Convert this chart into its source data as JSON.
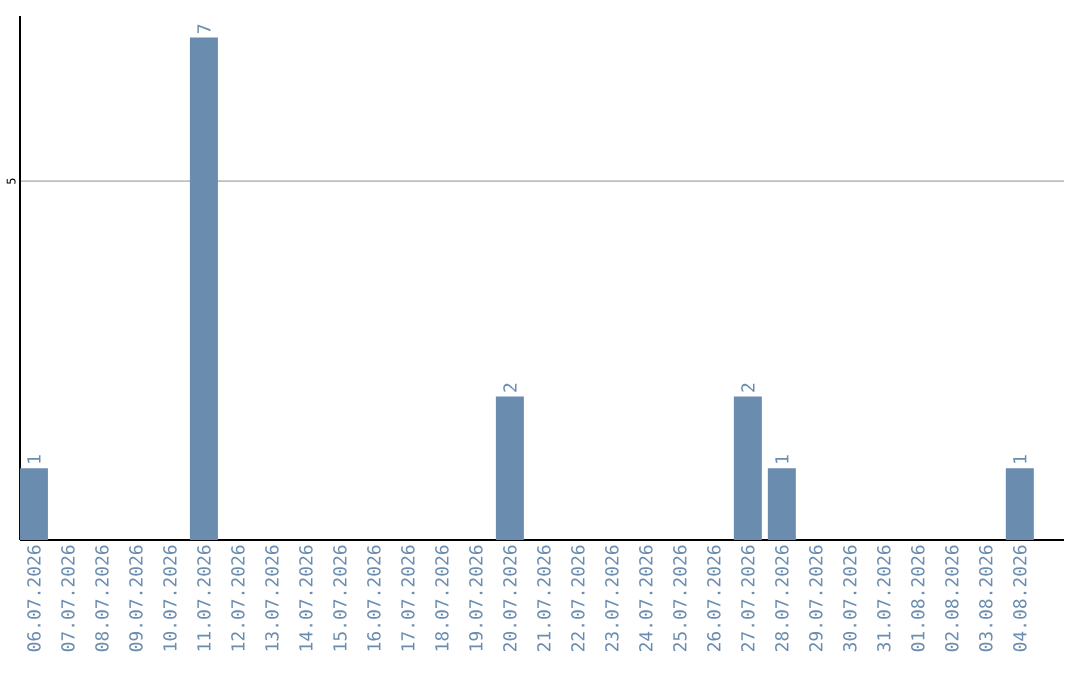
{
  "chart_data": {
    "type": "bar",
    "categories": [
      "06.07.2026",
      "07.07.2026",
      "08.07.2026",
      "09.07.2026",
      "10.07.2026",
      "11.07.2026",
      "12.07.2026",
      "13.07.2026",
      "14.07.2026",
      "15.07.2026",
      "16.07.2026",
      "17.07.2026",
      "18.07.2026",
      "19.07.2026",
      "20.07.2026",
      "21.07.2026",
      "22.07.2026",
      "23.07.2026",
      "24.07.2026",
      "25.07.2026",
      "26.07.2026",
      "27.07.2026",
      "28.07.2026",
      "29.07.2026",
      "30.07.2026",
      "31.07.2026",
      "01.08.2026",
      "02.08.2026",
      "03.08.2026",
      "04.08.2026"
    ],
    "values": [
      1,
      0,
      0,
      0,
      0,
      7,
      0,
      0,
      0,
      0,
      0,
      0,
      0,
      0,
      2,
      0,
      0,
      0,
      0,
      0,
      0,
      2,
      1,
      0,
      0,
      0,
      0,
      0,
      0,
      1
    ],
    "color": "#6a8caf",
    "value_labels": [
      "1",
      null,
      null,
      null,
      null,
      "7",
      null,
      null,
      null,
      null,
      null,
      null,
      null,
      null,
      "2",
      null,
      null,
      null,
      null,
      null,
      null,
      "2",
      "1",
      null,
      null,
      null,
      null,
      null,
      null,
      "1"
    ],
    "ylim": [
      0,
      7.3
    ],
    "yticks": [
      5
    ],
    "grid": "y"
  }
}
